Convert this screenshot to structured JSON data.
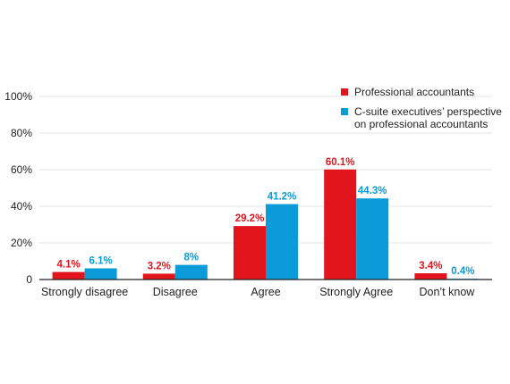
{
  "chart_data": {
    "type": "bar",
    "categories": [
      "Strongly disagree",
      "Disagree",
      "Agree",
      "Strongly Agree",
      "Don’t know"
    ],
    "series": [
      {
        "name": "Professional accountants",
        "values": [
          4.1,
          3.2,
          29.2,
          60.1,
          3.4
        ],
        "labels": [
          "4.1%",
          "3.2%",
          "29.2%",
          "60.1%",
          "3.4%"
        ],
        "color": "#e2141c"
      },
      {
        "name": "C-suite executives’ perspective on professional accountants",
        "name_lines": [
          "C-suite executives’ perspective",
          "on professional accountants"
        ],
        "values": [
          6.1,
          8,
          41.2,
          44.3,
          0.4
        ],
        "labels": [
          "6.1%",
          "8%",
          "41.2%",
          "44.3%",
          "0.4%"
        ],
        "color": "#0a9bd8"
      }
    ],
    "yticks": [
      "0",
      "20%",
      "40%",
      "60%",
      "80%",
      "100%"
    ],
    "ylim": [
      0,
      100
    ],
    "title": "",
    "xlabel": "",
    "ylabel": "",
    "grid": true,
    "legend_position": "top-right"
  }
}
